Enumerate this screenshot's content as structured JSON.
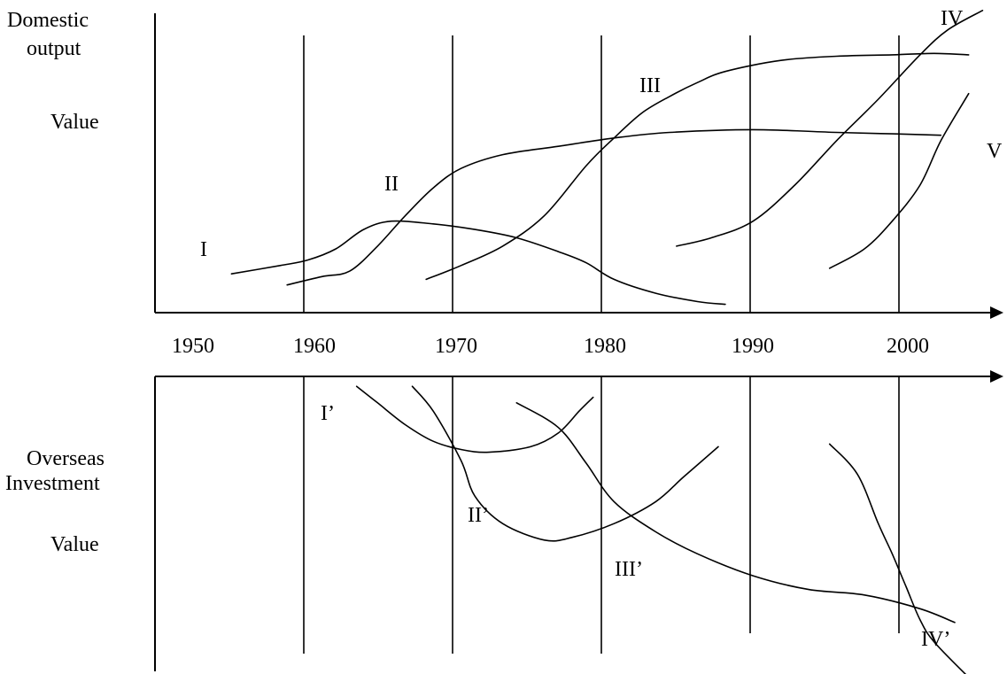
{
  "chart_data": [
    {
      "type": "line",
      "panel": "domestic-output",
      "ylabel_lines": [
        "Domestic",
        "output",
        "Value"
      ],
      "x_ticks": [
        "1950",
        "1960",
        "1970",
        "1980",
        "1990",
        "2000"
      ],
      "xlim": [
        1947,
        2008
      ],
      "ylim": [
        0,
        100
      ],
      "grid": "vertical lines at 1960, 1970, 1980, 1990, 2000",
      "legend": "none (curves labeled directly)",
      "series": [
        {
          "name": "I",
          "x": [
            1952.5,
            1956,
            1958,
            1960,
            1962,
            1964,
            1967,
            1970,
            1973,
            1976,
            1978,
            1980,
            1983,
            1986,
            1988
          ],
          "y": [
            14,
            17,
            19,
            23,
            30,
            33,
            32,
            30,
            27,
            22,
            18,
            12,
            7,
            4,
            3
          ]
        },
        {
          "name": "II",
          "x": [
            1956.5,
            1959,
            1961,
            1963,
            1965,
            1967,
            1969,
            1972,
            1976,
            1980,
            1984,
            1990,
            1996,
            2000,
            2003.5
          ],
          "y": [
            10,
            13,
            15,
            24,
            35,
            45,
            52,
            57,
            60,
            63,
            65,
            66,
            65,
            64.5,
            64
          ]
        },
        {
          "name": "III",
          "x": [
            1966.5,
            1969,
            1972,
            1975,
            1978,
            1980,
            1982,
            1984,
            1986,
            1988,
            1992,
            1996,
            2000,
            2003,
            2005.5
          ],
          "y": [
            12,
            17,
            24,
            35,
            53,
            63,
            72,
            78,
            83,
            87,
            91,
            92.5,
            93,
            93.5,
            93
          ]
        },
        {
          "name": "IV",
          "x": [
            1984.5,
            1987,
            1990,
            1993,
            1996,
            1999,
            2002,
            2004,
            2006.5
          ],
          "y": [
            24,
            27,
            33,
            46,
            62,
            77,
            93,
            102,
            109
          ]
        },
        {
          "name": "V",
          "x": [
            1995.5,
            1998,
            2000,
            2002,
            2003.5,
            2005.5
          ],
          "y": [
            16,
            23,
            33,
            46,
            62,
            79
          ]
        }
      ],
      "curve_labels": [
        "I",
        "II",
        "III",
        "IV",
        "V"
      ]
    },
    {
      "type": "line",
      "panel": "overseas-investment",
      "ylabel_lines": [
        "Overseas",
        "Investment",
        "Value"
      ],
      "xlim": [
        1947,
        2008
      ],
      "ylim": [
        0,
        100
      ],
      "grid": "vertical lines at 1960, 1970, 1980, 1990, 2000",
      "legend": "none (curves labeled directly)",
      "series": [
        {
          "name": "I’",
          "x": [
            1961.5,
            1963,
            1965,
            1967,
            1969,
            1971,
            1974,
            1976,
            1977.5,
            1978.5
          ],
          "y": [
            98,
            92,
            84,
            78,
            75,
            74,
            76,
            81,
            89,
            94
          ]
        },
        {
          "name": "II’",
          "x": [
            1965.5,
            1967,
            1969,
            1970,
            1972,
            1975,
            1977,
            1980,
            1983,
            1985,
            1987.5
          ],
          "y": [
            98,
            89,
            71,
            58,
            48,
            42,
            43,
            48,
            56,
            65,
            76
          ]
        },
        {
          "name": "III’",
          "x": [
            1973,
            1976,
            1978,
            1980,
            1983,
            1986,
            1990,
            1994,
            1998,
            2002,
            2004.5
          ],
          "y": [
            92,
            83,
            70,
            56,
            45,
            37,
            29,
            24,
            22,
            17,
            12
          ]
        },
        {
          "name": "IV’",
          "x": [
            1995.5,
            1997.5,
            1999,
            2000,
            2001,
            2002,
            2003,
            2005.5
          ],
          "y": [
            77,
            66,
            48,
            37,
            25,
            13,
            5,
            -8
          ]
        }
      ],
      "curve_labels": [
        "I’",
        "II’",
        "III’",
        "IV’"
      ]
    }
  ]
}
